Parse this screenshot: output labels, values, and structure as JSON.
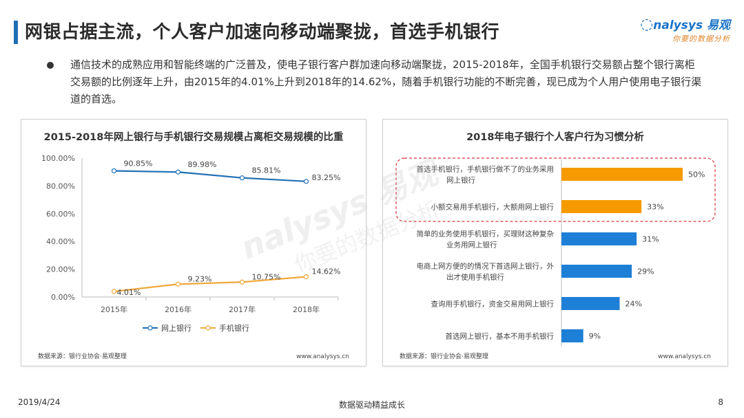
{
  "header": {
    "title": "网银占据主流，个人客户加速向移动端聚拢，首选手机银行",
    "logo_text": "nalysys 易观",
    "logo_tagline": "你要的数据分析"
  },
  "intro": "通信技术的成熟应用和智能终端的广泛普及，使电子银行客户群加速向移动端聚拢，2015-2018年，全国手机银行交易额占整个银行离柜交易额的比例逐年上升，由2015年的4.01%上升到2018年的14.62%，随着手机银行功能的不断完善，现已成为个人用户使用电子银行渠道的首选。",
  "watermark": {
    "main": "nalysys 易观",
    "sub": "你要的数据分析"
  },
  "footer": {
    "date": "2019/4/24",
    "center": "数据驱动精益成长",
    "page": "8"
  },
  "colors": {
    "blue": "#1f6fb5",
    "orange": "#f0a63a",
    "bar_blue": "#1e7fd6",
    "bar_orange": "#f59a00",
    "highlight": "#d9333f"
  },
  "chart_data": [
    {
      "type": "line",
      "title": "2015-2018年网上银行与手机银行交易规模占离柜交易规模的比重",
      "categories": [
        "2015年",
        "2016年",
        "2017年",
        "2018年"
      ],
      "y_ticks": [
        "100.00%",
        "80.00%",
        "60.00%",
        "40.00%",
        "20.00%",
        "0.00%"
      ],
      "ylim": [
        0,
        100
      ],
      "series": [
        {
          "name": "网上银行",
          "values": [
            90.85,
            89.98,
            85.81,
            83.25
          ],
          "labels": [
            "90.85%",
            "89.98%",
            "85.81%",
            "83.25%"
          ],
          "color": "#1f6fb5"
        },
        {
          "name": "手机银行",
          "values": [
            4.01,
            9.23,
            10.75,
            14.62
          ],
          "labels": [
            "4.01%",
            "9.23%",
            "10.75%",
            "14.62%"
          ],
          "color": "#f0a63a"
        }
      ],
      "legend": "bottom",
      "source": "数据来源：银行业协会·易观整理",
      "site": "www.analysys.cn"
    },
    {
      "type": "bar",
      "orientation": "horizontal",
      "title": "2018年电子银行个人客户行为习惯分析",
      "categories": [
        [
          "首选手机银行，手机银行做不了的业务采用",
          "网上银行"
        ],
        [
          "小额交易用手机银行，大额用网上银行"
        ],
        [
          "简单的业务使用手机银行，买理财这种复杂",
          "业务用网上银行"
        ],
        [
          "电商上网方便的的情况下首选网上银行，外",
          "出才使用手机银行"
        ],
        [
          "查询用手机银行，资金交易用网上银行"
        ],
        [
          "首选网上银行，基本不用手机银行"
        ]
      ],
      "values": [
        50,
        33,
        31,
        29,
        24,
        9
      ],
      "labels": [
        "50%",
        "33%",
        "31%",
        "29%",
        "24%",
        "9%"
      ],
      "highlighted": [
        true,
        true,
        false,
        false,
        false,
        false
      ],
      "xlim": [
        0,
        50
      ],
      "source": "数据来源：银行业协会·易观整理",
      "site": "www.analysys.cn"
    }
  ]
}
